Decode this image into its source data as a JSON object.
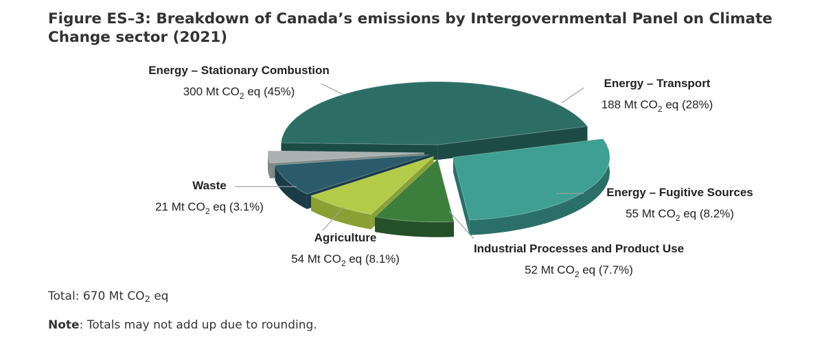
{
  "figure": {
    "title": "Figure ES–3: Breakdown of Canada’s emissions by Intergovernmental Panel on Climate Change sector (2021)"
  },
  "chart_data": {
    "type": "pie",
    "title": "Figure ES–3: Breakdown of Canada’s emissions by Intergovernmental Panel on Climate Change sector (2021)",
    "units": "Mt CO2 eq",
    "slices": [
      {
        "name": "Energy – Stationary Combustion",
        "value": 300,
        "percent": 45,
        "label": "300 Mt CO2 eq (45%)",
        "color": "#2c6e66",
        "side_color": "#1c4a45"
      },
      {
        "name": "Energy – Transport",
        "value": 188,
        "percent": 28,
        "label": "188 Mt CO2 eq (28%)",
        "color": "#3f9f93",
        "side_color": "#2a7068"
      },
      {
        "name": "Energy – Fugitive Sources",
        "value": 55,
        "percent": 8.2,
        "label": "55 Mt CO2 eq (8.2%)",
        "color": "#3c7f3c",
        "side_color": "#24502a"
      },
      {
        "name": "Industrial Processes and Product Use",
        "value": 52,
        "percent": 7.7,
        "label": "52 Mt CO2 eq (7.7%)",
        "color": "#b3cb48",
        "side_color": "#8ba034"
      },
      {
        "name": "Agriculture",
        "value": 54,
        "percent": 8.1,
        "label": "54 Mt CO2 eq (8.1%)",
        "color": "#2b5b6a",
        "side_color": "#1a3b46"
      },
      {
        "name": "Waste",
        "value": 21,
        "percent": 3.1,
        "label": "21 Mt CO2 eq (3.1%)",
        "color": "#a9b2b0",
        "side_color": "#7e8886"
      }
    ]
  },
  "footer": {
    "total_prefix": "Total: 670 Mt CO",
    "total_sub": "2",
    "total_suffix": " eq",
    "note_label": "Note",
    "note_text": ": Totals may not add up due to rounding."
  }
}
